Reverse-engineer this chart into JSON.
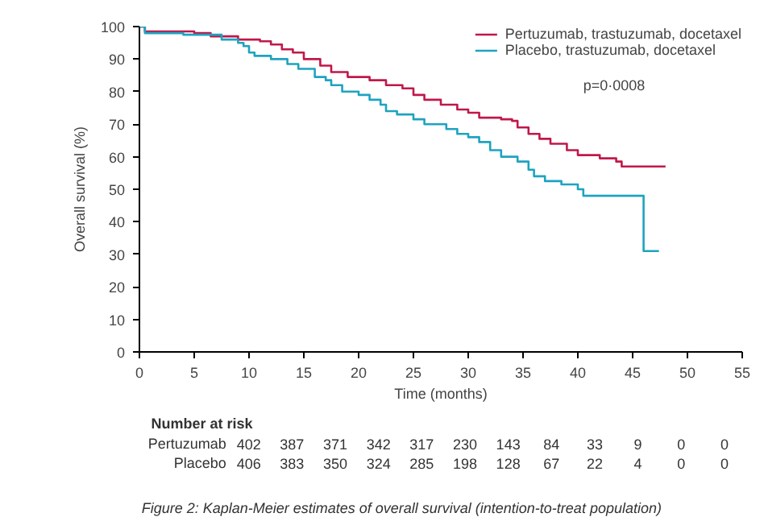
{
  "chart_data": {
    "type": "step",
    "xlabel": "Time (months)",
    "ylabel": "Overall survival (%)",
    "xlim": [
      0,
      55
    ],
    "xticks": [
      0,
      5,
      10,
      15,
      20,
      25,
      30,
      35,
      40,
      45,
      50,
      55
    ],
    "ylim": [
      0,
      100
    ],
    "yticks": [
      0,
      10,
      20,
      30,
      40,
      50,
      60,
      70,
      80,
      90,
      100
    ],
    "grid": false,
    "legend": "top right",
    "marker": "none",
    "line_style": "solid",
    "series": [
      {
        "name": "Pertuzumab, trastuzumab, docetaxel",
        "color": "#c0184a",
        "x": [
          0,
          0.5,
          5,
          6.5,
          9,
          11,
          12,
          13,
          14,
          15,
          16.5,
          17.5,
          19,
          21,
          22.5,
          24,
          25,
          26,
          27.5,
          29,
          30,
          31,
          33,
          34,
          34.5,
          35.5,
          36.5,
          37.5,
          39,
          40,
          42,
          43.5,
          44,
          48
        ],
        "values": [
          100,
          98.5,
          98,
          97,
          96,
          95.5,
          94.5,
          93,
          92,
          90,
          88,
          86,
          84.5,
          83.5,
          82,
          81,
          79,
          77.5,
          76,
          74.5,
          73.5,
          72,
          71.5,
          71,
          69,
          67,
          65.5,
          64,
          62,
          60.5,
          59.5,
          58.5,
          57,
          57
        ]
      },
      {
        "name": "Placebo, trastuzumab, docetaxel",
        "color": "#1ea3c0",
        "x": [
          0,
          0.5,
          4,
          7.5,
          9,
          9.5,
          10,
          10.5,
          12,
          13.5,
          14.5,
          16,
          17,
          17.5,
          18.5,
          20,
          21,
          22,
          22.5,
          23.5,
          25,
          26,
          28,
          29,
          30,
          31,
          32,
          33,
          34.5,
          35.5,
          36,
          37,
          38.5,
          40,
          40.5,
          46,
          47.4
        ],
        "values": [
          100,
          98,
          97.5,
          96,
          95,
          94,
          92,
          91,
          90,
          88.5,
          87,
          84.5,
          83.5,
          82,
          80,
          79,
          77.5,
          76,
          74,
          73,
          71.5,
          70,
          68.5,
          67,
          66,
          64.5,
          62,
          60,
          58.5,
          56,
          54,
          52.5,
          51.5,
          50,
          48,
          31,
          31
        ]
      }
    ],
    "annotations": [
      "p=0·0008",
      "Number at risk",
      "Pertuzumab",
      "402",
      "387",
      "371",
      "342",
      "317",
      "230",
      "143",
      "84",
      "33",
      "9",
      "0",
      "0",
      "Placebo",
      "406",
      "383",
      "350",
      "324",
      "285",
      "198",
      "128",
      "67",
      "22",
      "4",
      "0",
      "0",
      "Figure 2: Kaplan-Meier estimates of overall survival (intention-to-treat population)"
    ]
  }
}
